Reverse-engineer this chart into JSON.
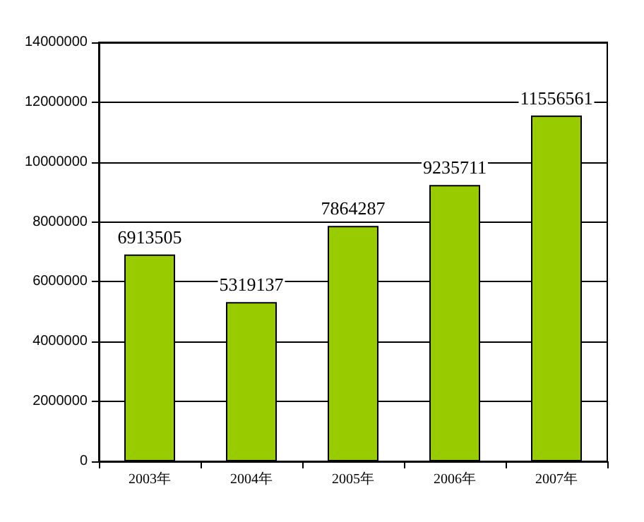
{
  "chart_data": {
    "type": "bar",
    "categories": [
      "2003年",
      "2004年",
      "2005年",
      "2006年",
      "2007年"
    ],
    "values": [
      6913505,
      5319137,
      7864287,
      9235711,
      11556561
    ],
    "color": "#99cc00",
    "ylim": [
      0,
      14000000
    ],
    "yticks": [
      0,
      2000000,
      4000000,
      6000000,
      8000000,
      10000000,
      12000000,
      14000000
    ],
    "grid": "y",
    "data_labels": true
  }
}
